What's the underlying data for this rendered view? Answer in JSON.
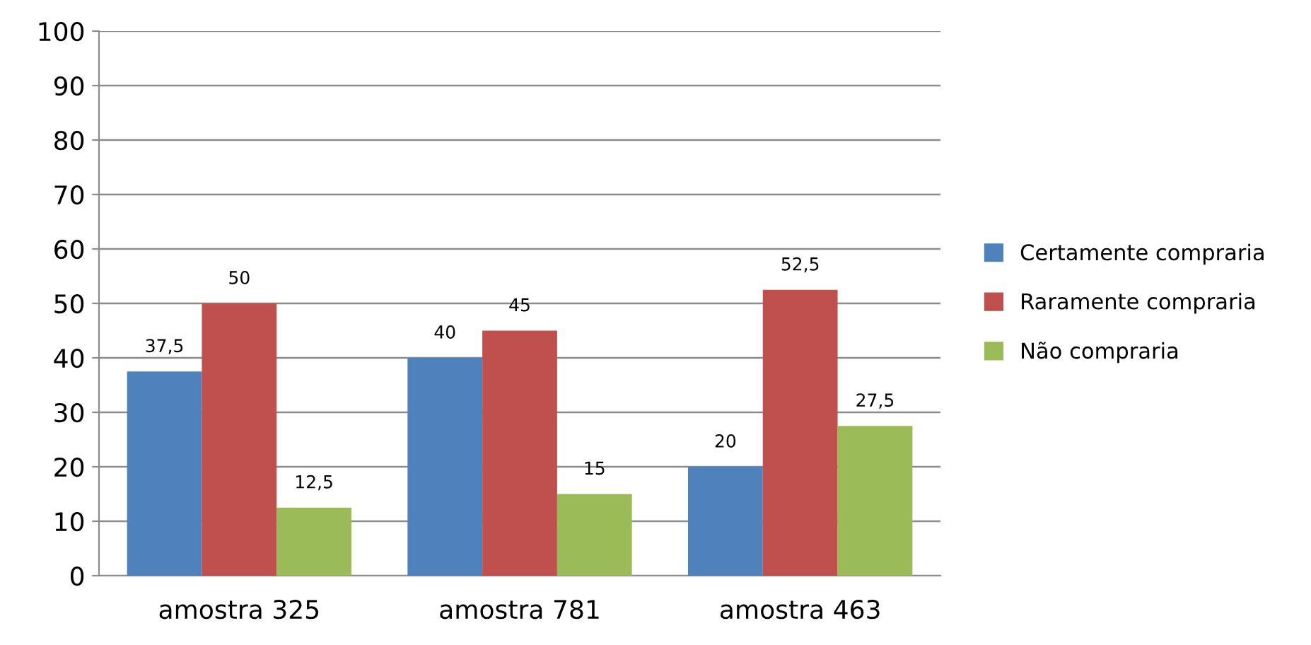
{
  "chart_data": {
    "type": "bar",
    "categories": [
      "amostra 325",
      "amostra 781",
      "amostra 463"
    ],
    "series": [
      {
        "name": "Certamente compraria",
        "color": "#4f81bd",
        "values": [
          37.5,
          40,
          20
        ],
        "value_labels": [
          "37,5",
          "40",
          "20"
        ]
      },
      {
        "name": "Raramente compraria",
        "color": "#c0504d",
        "values": [
          50,
          45,
          52.5
        ],
        "value_labels": [
          "50",
          "45",
          "52,5"
        ]
      },
      {
        "name": "Não compraria",
        "color": "#9bbb59",
        "values": [
          12.5,
          15,
          27.5
        ],
        "value_labels": [
          "12,5",
          "15",
          "27,5"
        ]
      }
    ],
    "ylim": [
      0,
      100
    ],
    "yticks": [
      0,
      10,
      20,
      30,
      40,
      50,
      60,
      70,
      80,
      90,
      100
    ],
    "grid": "y",
    "legend": "right"
  }
}
